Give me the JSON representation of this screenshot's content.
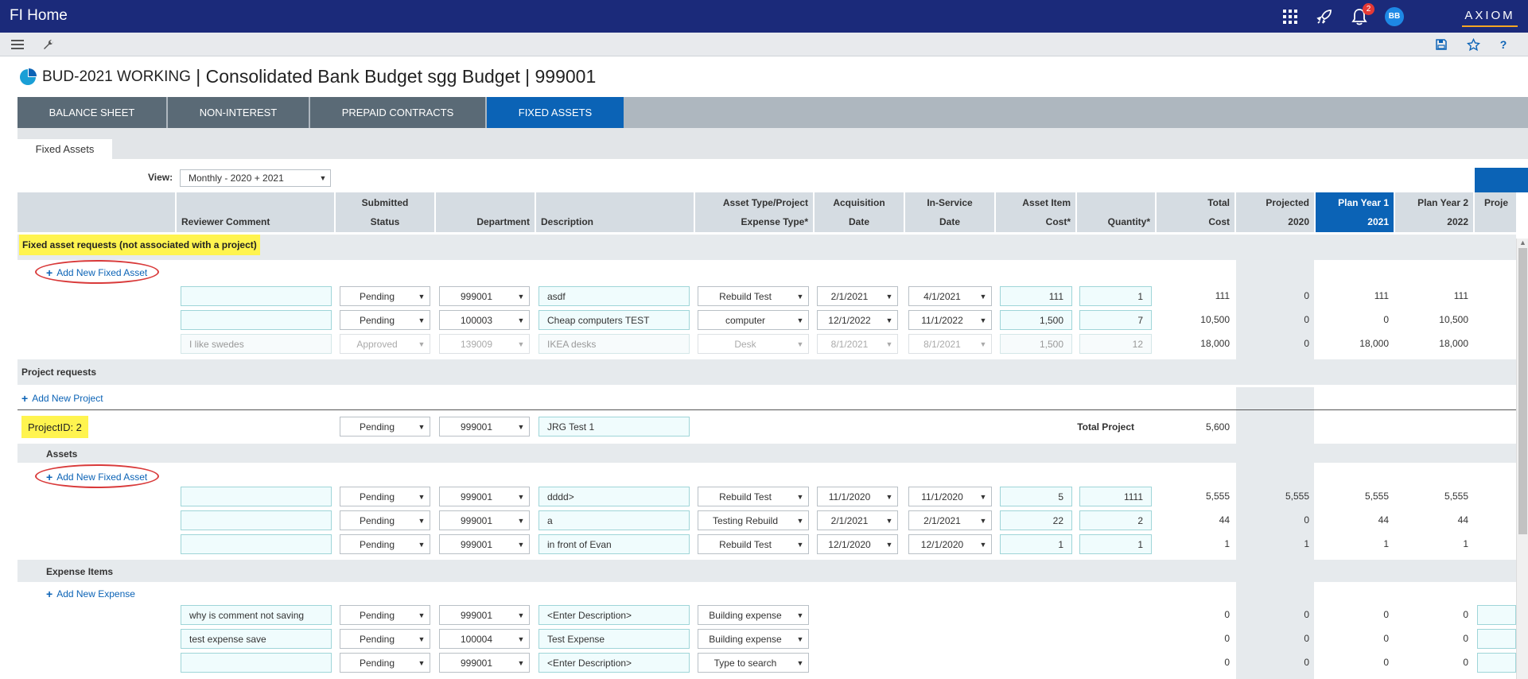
{
  "app": {
    "title": "FI Home",
    "notification_count": "2",
    "avatar_initials": "BB",
    "logo_text": "AXIOM"
  },
  "icons": {
    "apps": "grid-icon",
    "launch": "rocket-icon",
    "notifications": "bell-icon",
    "menu": "hamburger-icon",
    "tools": "wrench-icon",
    "save": "save-icon",
    "favorite": "star-icon",
    "help": "help-icon",
    "page": "pie-chart-icon"
  },
  "page": {
    "title_prefix": "BUD-2021 WORKING",
    "title_rest": " | Consolidated Bank Budget sgg Budget | 999001"
  },
  "tabs": [
    {
      "label": "BALANCE SHEET"
    },
    {
      "label": "NON-INTEREST"
    },
    {
      "label": "PREPAID CONTRACTS"
    },
    {
      "label": "FIXED ASSETS"
    }
  ],
  "active_tab": "FIXED ASSETS",
  "subtab": "Fixed Assets",
  "view": {
    "label": "View:",
    "value": "Monthly - 2020 + 2021"
  },
  "columns": {
    "reviewer": "Reviewer Comment",
    "submitted1": "Submitted",
    "submitted2": "Status",
    "department": "Department",
    "description": "Description",
    "assettype1": "Asset Type/Project",
    "assettype2": "Expense Type*",
    "acq1": "Acquisition",
    "acq2": "Date",
    "inservice1": "In-Service",
    "inservice2": "Date",
    "cost1": "Asset Item",
    "cost2": "Cost*",
    "qty": "Quantity*",
    "total1": "Total",
    "total2": "Cost",
    "proj1": "Projected",
    "proj2": "2020",
    "py1a": "Plan Year 1",
    "py1b": "2021",
    "py2a": "Plan Year 2",
    "py2b": "2022",
    "py3a": "Proje"
  },
  "section1": {
    "label": "Fixed asset requests (not associated with a project)",
    "add_label": "Add New Fixed Asset",
    "rows": [
      {
        "comment": "",
        "status": "Pending",
        "dept": "999001",
        "desc": "asdf",
        "type": "Rebuild Test",
        "acq": "2/1/2021",
        "insvc": "4/1/2021",
        "cost": "111",
        "qty": "1",
        "total": "111",
        "p2020": "0",
        "py1": "111",
        "py2": "111"
      },
      {
        "comment": "",
        "status": "Pending",
        "dept": "100003",
        "desc": "Cheap computers TEST",
        "type": "computer",
        "acq": "12/1/2022",
        "insvc": "11/1/2022",
        "cost": "1,500",
        "qty": "7",
        "total": "10,500",
        "p2020": "0",
        "py1": "0",
        "py2": "10,500"
      },
      {
        "comment": "I like swedes",
        "status": "Approved",
        "dept": "139009",
        "desc": "IKEA desks",
        "type": "Desk",
        "acq": "8/1/2021",
        "insvc": "8/1/2021",
        "cost": "1,500",
        "qty": "12",
        "total": "18,000",
        "p2020": "0",
        "py1": "18,000",
        "py2": "18,000"
      }
    ]
  },
  "projects": {
    "label": "Project requests",
    "add_label": "Add New Project",
    "project": {
      "id_label": "ProjectID: 2",
      "status": "Pending",
      "dept": "999001",
      "desc": "JRG Test 1",
      "total_label": "Total Project",
      "total": "5,600"
    },
    "assets_label": "Assets",
    "add_asset_label": "Add New Fixed Asset",
    "asset_rows": [
      {
        "comment": "",
        "status": "Pending",
        "dept": "999001",
        "desc": "dddd>",
        "type": "Rebuild Test",
        "acq": "11/1/2020",
        "insvc": "11/1/2020",
        "cost": "5",
        "qty": "1111",
        "total": "5,555",
        "p2020": "5,555",
        "py1": "5,555",
        "py2": "5,555"
      },
      {
        "comment": "",
        "status": "Pending",
        "dept": "999001",
        "desc": "a",
        "type": "Testing Rebuild",
        "acq": "2/1/2021",
        "insvc": "2/1/2021",
        "cost": "22",
        "qty": "2",
        "total": "44",
        "p2020": "0",
        "py1": "44",
        "py2": "44"
      },
      {
        "comment": "",
        "status": "Pending",
        "dept": "999001",
        "desc": "in front of Evan",
        "type": "Rebuild Test",
        "acq": "12/1/2020",
        "insvc": "12/1/2020",
        "cost": "1",
        "qty": "1",
        "total": "1",
        "p2020": "1",
        "py1": "1",
        "py2": "1"
      }
    ],
    "expense_label": "Expense Items",
    "add_expense_label": "Add New Expense",
    "expense_rows": [
      {
        "comment": "why is comment not saving",
        "status": "Pending",
        "dept": "999001",
        "desc": "<Enter Description>",
        "type": "Building expense",
        "total": "0",
        "p2020": "0",
        "py1": "0",
        "py2": "0"
      },
      {
        "comment": "test expense save",
        "status": "Pending",
        "dept": "100004",
        "desc": "Test Expense",
        "type": "Building expense",
        "total": "0",
        "p2020": "0",
        "py1": "0",
        "py2": "0"
      },
      {
        "comment": "",
        "status": "Pending",
        "dept": "999001",
        "desc": "<Enter Description>",
        "type": "Type to search",
        "total": "0",
        "p2020": "0",
        "py1": "0",
        "py2": "0"
      }
    ]
  }
}
